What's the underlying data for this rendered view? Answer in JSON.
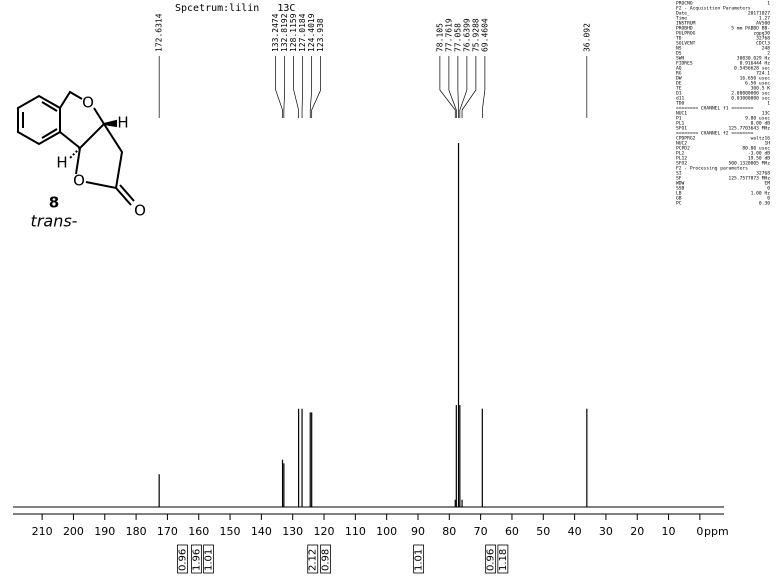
{
  "chart_data": {
    "type": "spectrum",
    "title": "Spcetrum:lilin   13C",
    "x_label": "ppm",
    "x": [
      172.6314,
      133.2474,
      132.8192,
      128.1159,
      127.0184,
      124.4019,
      123.938,
      78.105,
      77.7619,
      77.058,
      76.6399,
      75.9288,
      69.4604,
      36.092
    ],
    "values": [
      9,
      13,
      12,
      27,
      27,
      26,
      26,
      2,
      28,
      100,
      28,
      2,
      27,
      27
    ],
    "color": "#000000",
    "xlim": [
      219.3,
      -7.7
    ],
    "ylim": [
      0,
      100
    ],
    "xticks": [
      210,
      200,
      190,
      180,
      170,
      160,
      150,
      140,
      130,
      120,
      110,
      100,
      90,
      80,
      70,
      60,
      50,
      40,
      30,
      20,
      10,
      0
    ],
    "integrals": {
      "x": [
        165.2,
        160.7,
        156.9,
        123.6,
        119.5,
        89.8,
        66.8,
        62.9
      ],
      "values": [
        0.96,
        1.96,
        1.01,
        2.12,
        0.98,
        1.01,
        0.96,
        1.18
      ]
    },
    "parameters": [
      [
        "PROCNO",
        "1"
      ],
      [
        "F2 - Acquisition Parameters",
        ""
      ],
      [
        "Date_",
        "20171027"
      ],
      [
        "Time",
        "1.27"
      ],
      [
        "INSTRUM",
        "AV500"
      ],
      [
        "PROBHD",
        "5 mm PABBO BB-"
      ],
      [
        "PULPROG",
        "zgpg30"
      ],
      [
        "TD",
        "32768"
      ],
      [
        "SOLVENT",
        "CDCl3"
      ],
      [
        "NS",
        "248"
      ],
      [
        "DS",
        "2"
      ],
      [
        "SWH",
        "30030.029 Hz"
      ],
      [
        "FIDRES",
        "0.916444 Hz"
      ],
      [
        "AQ",
        "0.5456628 sec"
      ],
      [
        "RG",
        "724.1"
      ],
      [
        "DW",
        "16.650 usec"
      ],
      [
        "DE",
        "6.50 usec"
      ],
      [
        "TE",
        "300.5 K"
      ],
      [
        "D1",
        "2.00000000 sec"
      ],
      [
        "d11",
        "0.03000000 sec"
      ],
      [
        "TD0",
        "1"
      ],
      [
        "======== CHANNEL f1 ========",
        ""
      ],
      [
        "NUC1",
        "13C"
      ],
      [
        "P1",
        "9.80 usec"
      ],
      [
        "PL1",
        "0.00 dB"
      ],
      [
        "SFO1",
        "125.7703643 MHz"
      ],
      [
        "======== CHANNEL f2 ========",
        ""
      ],
      [
        "CPDPRG2",
        "waltz16"
      ],
      [
        "NUC2",
        "1H"
      ],
      [
        "PCPD2",
        "80.00 usec"
      ],
      [
        "PL2",
        "-3.00 dB"
      ],
      [
        "PL12",
        "19.50 dB"
      ],
      [
        "SFO2",
        "500.1320005 MHz"
      ],
      [
        "F2 - Processing parameters",
        ""
      ],
      [
        "SI",
        "32768"
      ],
      [
        "SF",
        "125.7577873 MHz"
      ],
      [
        "WDW",
        "EM"
      ],
      [
        "SSB",
        "0"
      ],
      [
        "LB",
        "1.00 Hz"
      ],
      [
        "GB",
        "0"
      ],
      [
        "PC",
        "0.30"
      ]
    ]
  },
  "structure": {
    "compound": "8",
    "isomer": "trans-",
    "atoms": [
      "O",
      "H",
      "H",
      "O",
      "O"
    ]
  }
}
